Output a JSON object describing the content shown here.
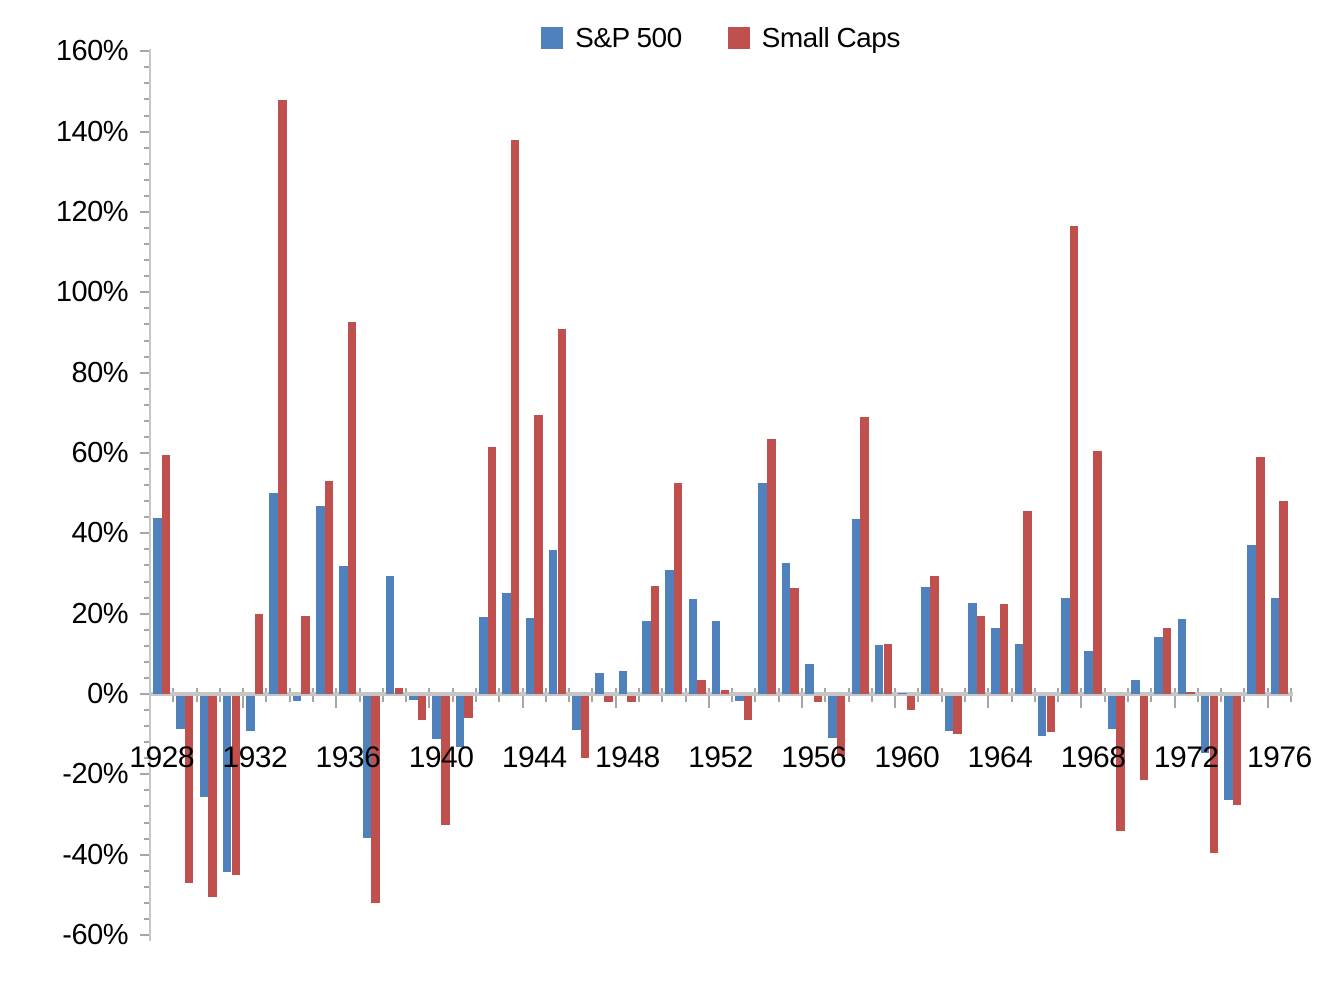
{
  "chart_data": {
    "type": "bar",
    "title": "",
    "legend_position": "top-center",
    "grid": false,
    "legend": [
      {
        "name": "S&P 500",
        "color": "#4F81BD"
      },
      {
        "name": "Small Caps",
        "color": "#C0504D"
      }
    ],
    "categories": [
      1928,
      1929,
      1930,
      1931,
      1932,
      1933,
      1934,
      1935,
      1936,
      1937,
      1938,
      1939,
      1940,
      1941,
      1942,
      1943,
      1944,
      1945,
      1946,
      1947,
      1948,
      1949,
      1950,
      1951,
      1952,
      1953,
      1954,
      1955,
      1956,
      1957,
      1958,
      1959,
      1960,
      1961,
      1962,
      1963,
      1964,
      1965,
      1966,
      1967,
      1968,
      1969,
      1970,
      1971,
      1972,
      1973,
      1974,
      1975,
      1976
    ],
    "series": [
      {
        "name": "S&P 500",
        "color": "#4F81BD",
        "values": [
          43.8,
          -8.3,
          -25.1,
          -43.8,
          -8.6,
          50.0,
          -1.2,
          46.7,
          31.9,
          -35.3,
          29.3,
          -1.1,
          -10.7,
          -12.8,
          19.2,
          25.1,
          19.0,
          35.8,
          -8.4,
          5.2,
          5.7,
          18.3,
          30.8,
          23.7,
          18.2,
          -1.2,
          52.6,
          32.6,
          7.4,
          -10.5,
          43.7,
          12.1,
          0.3,
          26.6,
          -8.8,
          22.6,
          16.4,
          12.4,
          -10.0,
          23.8,
          10.8,
          -8.2,
          3.6,
          14.2,
          18.8,
          -14.3,
          -25.9,
          37.0,
          23.8
        ]
      },
      {
        "name": "Small Caps",
        "color": "#C0504D",
        "values": [
          59.5,
          -46.5,
          -50.0,
          -44.5,
          20.0,
          148.0,
          19.5,
          53.0,
          92.5,
          -51.5,
          1.5,
          -6.0,
          -32.0,
          -5.5,
          61.5,
          138.0,
          69.5,
          91.0,
          -15.5,
          -1.5,
          -1.5,
          27.0,
          52.5,
          3.5,
          1.0,
          -6.0,
          63.5,
          26.5,
          -1.5,
          -15.0,
          69.0,
          12.5,
          -3.5,
          29.5,
          -9.5,
          19.5,
          22.5,
          45.5,
          -9.0,
          116.5,
          60.5,
          -33.5,
          -21.0,
          16.5,
          0.4,
          -39.0,
          -27.0,
          59.0,
          48.0
        ]
      }
    ],
    "y_axis": {
      "min": -60,
      "max": 160,
      "major_unit": 20,
      "minor_unit": 4,
      "tick_labels": [
        "160%",
        "140%",
        "120%",
        "100%",
        "80%",
        "60%",
        "40%",
        "20%",
        "0%",
        "-20%",
        "-40%",
        "-60%"
      ]
    },
    "x_axis": {
      "label_every": 4,
      "tick_labels": [
        "1928",
        "1932",
        "1936",
        "1940",
        "1944",
        "1948",
        "1952",
        "1956",
        "1960",
        "1964",
        "1968",
        "1972",
        "1976"
      ]
    }
  },
  "colors": {
    "sp500": "#4F81BD",
    "small_caps": "#C0504D",
    "axis_line": "#C6C6C6",
    "tick": "#A6A6A6",
    "text": "#000000",
    "background": "#FFFFFF"
  }
}
